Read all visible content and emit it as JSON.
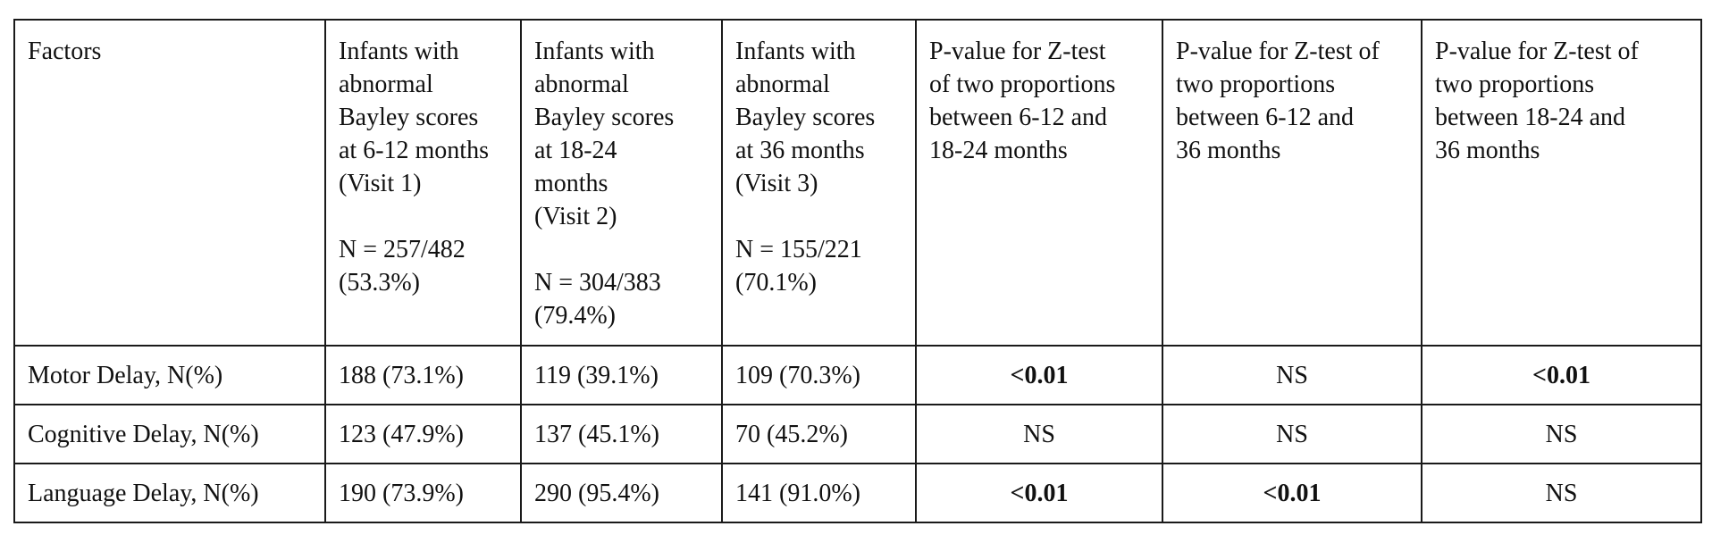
{
  "table": {
    "headers": [
      {
        "lines": [
          "Factors"
        ],
        "n_lines": []
      },
      {
        "lines": [
          "Infants with",
          "abnormal",
          "Bayley scores",
          "at 6-12 months",
          "(Visit 1)"
        ],
        "n_lines": [
          "N = 257/482",
          "(53.3%)"
        ]
      },
      {
        "lines": [
          "Infants with",
          "abnormal",
          "Bayley scores",
          "at 18-24",
          "months",
          "(Visit 2)"
        ],
        "n_lines": [
          "N = 304/383",
          "(79.4%)"
        ]
      },
      {
        "lines": [
          "Infants with",
          "abnormal",
          "Bayley scores",
          "at 36 months",
          "(Visit 3)"
        ],
        "n_lines": [
          "N = 155/221",
          "(70.1%)"
        ]
      },
      {
        "lines": [
          "P-value for Z-test",
          "of two proportions",
          "between 6-12 and",
          "18-24 months"
        ],
        "n_lines": []
      },
      {
        "lines": [
          "P-value for Z-test of",
          "two proportions",
          "between 6-12 and",
          "36 months"
        ],
        "n_lines": []
      },
      {
        "lines": [
          "P-value for Z-test of",
          "two proportions",
          "between 18-24 and",
          "36 months"
        ],
        "n_lines": []
      }
    ],
    "rows": [
      {
        "factor": "Motor Delay, N(%)",
        "visit1": "188 (73.1%)",
        "visit2": "119 (39.1%)",
        "visit3": "109 (70.3%)",
        "p_1_2": "<0.01",
        "p_1_3": "NS",
        "p_2_3": "<0.01",
        "bold": {
          "p_1_2": true,
          "p_1_3": false,
          "p_2_3": true
        }
      },
      {
        "factor": "Cognitive Delay, N(%)",
        "visit1": "123 (47.9%)",
        "visit2": "137 (45.1%)",
        "visit3": "70 (45.2%)",
        "p_1_2": "NS",
        "p_1_3": "NS",
        "p_2_3": "NS",
        "bold": {
          "p_1_2": false,
          "p_1_3": false,
          "p_2_3": false
        }
      },
      {
        "factor": "Language Delay, N(%)",
        "visit1": "190 (73.9%)",
        "visit2": "290 (95.4%)",
        "visit3": "141 (91.0%)",
        "p_1_2": "<0.01",
        "p_1_3": "<0.01",
        "p_2_3": "NS",
        "bold": {
          "p_1_2": true,
          "p_1_3": true,
          "p_2_3": false
        }
      }
    ]
  }
}
